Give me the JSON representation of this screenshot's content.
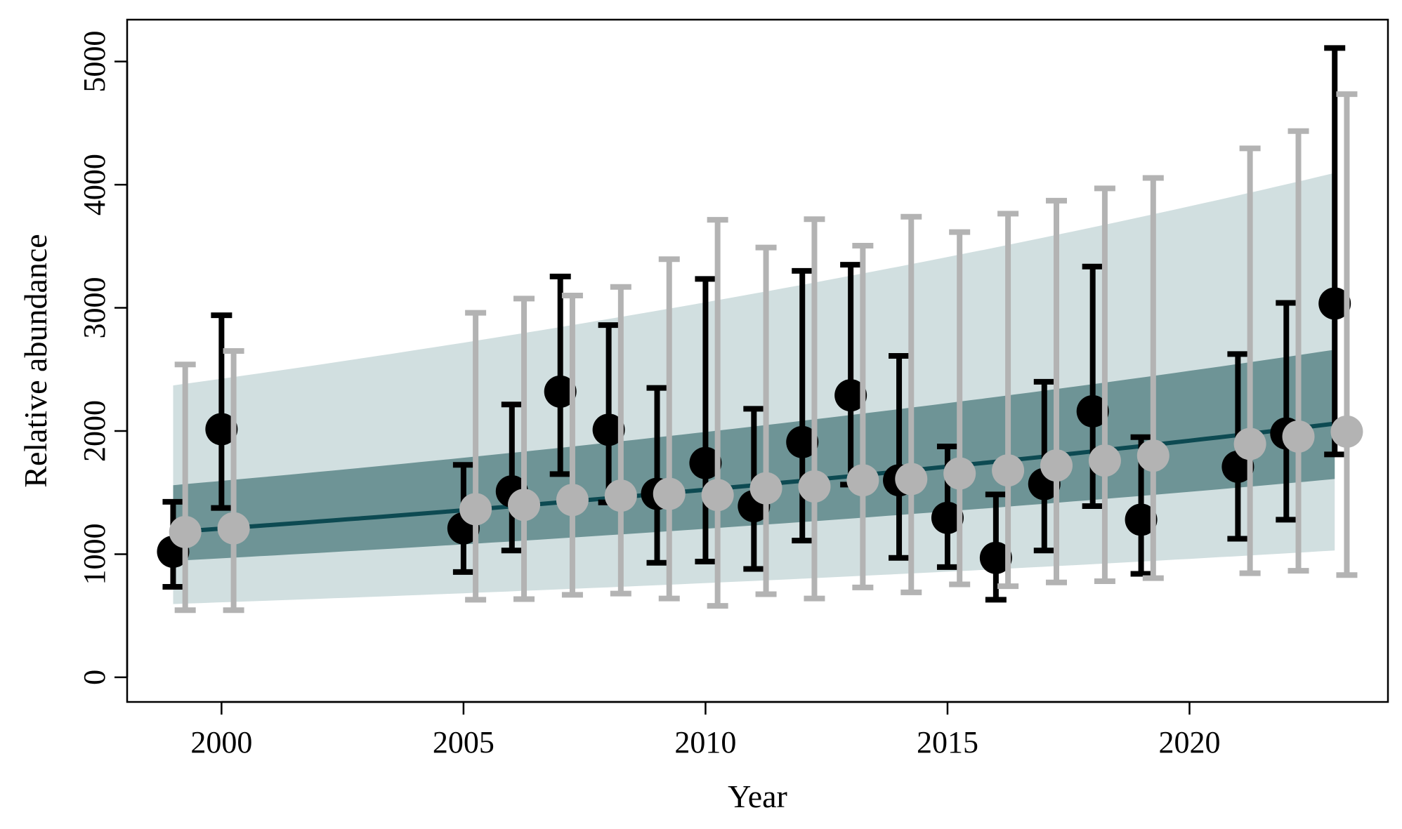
{
  "chart_data": {
    "type": "scatter",
    "title": "",
    "xlabel": "Year",
    "ylabel": "Relative abundance",
    "xlim": [
      1998.05,
      2024.1
    ],
    "ylim": [
      -200,
      5340
    ],
    "xticks": [
      2000,
      2005,
      2010,
      2015,
      2020
    ],
    "yticks": [
      0,
      1000,
      2000,
      3000,
      4000,
      5000
    ],
    "grid": false,
    "legend": "none",
    "colors": {
      "observed": "#000000",
      "model": "#b3b3b3",
      "trend_line": "#0d4a52",
      "inner_band": "#6e9496",
      "outer_band": "#d1dfe0"
    },
    "series": [
      {
        "values": [
          {
            "x": 1999,
            "y": 1020,
            "lo": 735,
            "hi": 1425
          },
          {
            "x": 2000,
            "y": 2015,
            "lo": 1375,
            "hi": 2940
          },
          {
            "x": 2005,
            "y": 1210,
            "lo": 855,
            "hi": 1725
          },
          {
            "x": 2006,
            "y": 1510,
            "lo": 1030,
            "hi": 2215
          },
          {
            "x": 2007,
            "y": 2320,
            "lo": 1650,
            "hi": 3255
          },
          {
            "x": 2008,
            "y": 2010,
            "lo": 1420,
            "hi": 2860
          },
          {
            "x": 2009,
            "y": 1490,
            "lo": 930,
            "hi": 2350
          },
          {
            "x": 2010,
            "y": 1740,
            "lo": 940,
            "hi": 3235
          },
          {
            "x": 2011,
            "y": 1390,
            "lo": 880,
            "hi": 2180
          },
          {
            "x": 2012,
            "y": 1910,
            "lo": 1110,
            "hi": 3300
          },
          {
            "x": 2013,
            "y": 2290,
            "lo": 1565,
            "hi": 3350
          },
          {
            "x": 2014,
            "y": 1600,
            "lo": 970,
            "hi": 2610
          },
          {
            "x": 2015,
            "y": 1295,
            "lo": 895,
            "hi": 1875
          },
          {
            "x": 2016,
            "y": 970,
            "lo": 630,
            "hi": 1485
          },
          {
            "x": 2017,
            "y": 1570,
            "lo": 1030,
            "hi": 2400
          },
          {
            "x": 2018,
            "y": 2160,
            "lo": 1390,
            "hi": 3335
          },
          {
            "x": 2019,
            "y": 1280,
            "lo": 840,
            "hi": 1950
          },
          {
            "x": 2021,
            "y": 1710,
            "lo": 1125,
            "hi": 2625
          },
          {
            "x": 2022,
            "y": 1980,
            "lo": 1280,
            "hi": 3040
          },
          {
            "x": 2023,
            "y": 3035,
            "lo": 1810,
            "hi": 5110
          }
        ]
      },
      {
        "values": [
          {
            "x": 1999.25,
            "y": 1180,
            "lo": 545,
            "hi": 2540
          },
          {
            "x": 2000.25,
            "y": 1210,
            "lo": 545,
            "hi": 2650
          },
          {
            "x": 2005.25,
            "y": 1365,
            "lo": 630,
            "hi": 2960
          },
          {
            "x": 2006.25,
            "y": 1400,
            "lo": 635,
            "hi": 3075
          },
          {
            "x": 2007.25,
            "y": 1440,
            "lo": 670,
            "hi": 3100
          },
          {
            "x": 2008.25,
            "y": 1475,
            "lo": 680,
            "hi": 3170
          },
          {
            "x": 2009.25,
            "y": 1490,
            "lo": 640,
            "hi": 3395
          },
          {
            "x": 2010.25,
            "y": 1480,
            "lo": 580,
            "hi": 3715
          },
          {
            "x": 2011.25,
            "y": 1535,
            "lo": 675,
            "hi": 3490
          },
          {
            "x": 2012.25,
            "y": 1550,
            "lo": 640,
            "hi": 3720
          },
          {
            "x": 2013.25,
            "y": 1600,
            "lo": 730,
            "hi": 3505
          },
          {
            "x": 2014.25,
            "y": 1610,
            "lo": 690,
            "hi": 3740
          },
          {
            "x": 2015.25,
            "y": 1655,
            "lo": 755,
            "hi": 3615
          },
          {
            "x": 2016.25,
            "y": 1680,
            "lo": 740,
            "hi": 3765
          },
          {
            "x": 2017.25,
            "y": 1720,
            "lo": 770,
            "hi": 3870
          },
          {
            "x": 2018.25,
            "y": 1760,
            "lo": 780,
            "hi": 3970
          },
          {
            "x": 2019.25,
            "y": 1800,
            "lo": 805,
            "hi": 4055
          },
          {
            "x": 2021.25,
            "y": 1895,
            "lo": 845,
            "hi": 4295
          },
          {
            "x": 2022.25,
            "y": 1955,
            "lo": 865,
            "hi": 4435
          },
          {
            "x": 2023.25,
            "y": 1995,
            "lo": 830,
            "hi": 4735
          }
        ]
      }
    ],
    "trend": {
      "x": [
        1999,
        2023
      ],
      "y": [
        1180,
        2060
      ],
      "inner_band": {
        "lo": [
          945,
          1610
        ],
        "hi": [
          1560,
          2660
        ]
      },
      "outer_band": {
        "lo": [
          595,
          1030
        ],
        "hi": [
          2370,
          4095
        ]
      }
    }
  }
}
